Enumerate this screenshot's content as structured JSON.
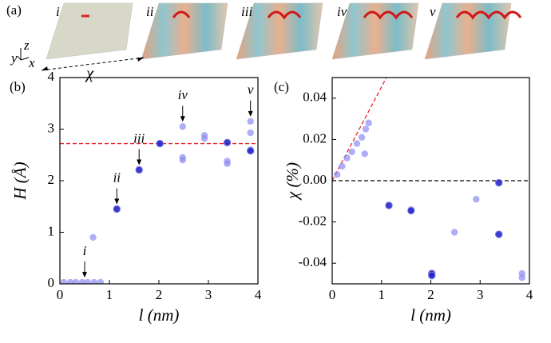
{
  "panel_a": {
    "label": "(a)",
    "snapshots": [
      "i",
      "ii",
      "iii",
      "iv",
      "v"
    ],
    "axes": [
      "y",
      "z",
      "x"
    ],
    "width_label": "χ"
  },
  "chart_data": [
    {
      "type": "scatter",
      "panel_label": "(b)",
      "xlabel": "l (nm)",
      "ylabel": "H (Å)",
      "xlim": [
        0,
        4
      ],
      "ylim": [
        0,
        4
      ],
      "xticks": [
        0,
        1,
        2,
        3,
        4
      ],
      "yticks": [
        0,
        1,
        2,
        3,
        4
      ],
      "series": [
        {
          "color": "#8c8cf2",
          "x": [
            0.08,
            0.21,
            0.32,
            0.45,
            0.56,
            0.69,
            0.82,
            0.67,
            2.02,
            2.48,
            2.48,
            2.48,
            2.92,
            2.92,
            3.38,
            3.38,
            3.85,
            3.85,
            3.85
          ],
          "values": [
            0.03,
            0.03,
            0.03,
            0.03,
            0.03,
            0.03,
            0.03,
            0.9,
            2.72,
            3.05,
            2.45,
            2.4,
            2.88,
            2.82,
            2.38,
            2.33,
            3.15,
            2.93,
            2.6
          ]
        },
        {
          "color": "#2626c8",
          "x": [
            1.15,
            1.6,
            2.02,
            3.38,
            3.85
          ],
          "values": [
            1.45,
            2.21,
            2.72,
            2.74,
            2.58
          ]
        }
      ],
      "reference_lines": [
        {
          "color": "#e8262b",
          "x": [
            0,
            4
          ],
          "y": [
            2.72,
            2.72
          ]
        }
      ],
      "annotations": [
        {
          "text": "i",
          "x": 0.5,
          "y": 0.03
        },
        {
          "text": "ii",
          "x": 1.15,
          "y": 1.45
        },
        {
          "text": "iii",
          "x": 1.6,
          "y": 2.21
        },
        {
          "text": "iv",
          "x": 2.48,
          "y": 3.05
        },
        {
          "text": "v",
          "x": 3.85,
          "y": 3.15
        }
      ]
    },
    {
      "type": "scatter",
      "panel_label": "(c)",
      "xlabel": "l (nm)",
      "ylabel": "χ (%)",
      "xlim": [
        0,
        4
      ],
      "ylim": [
        -0.05,
        0.05
      ],
      "xticks": [
        0,
        1,
        2,
        3,
        4
      ],
      "yticks": [
        -0.04,
        -0.02,
        {
          "value": 0,
          "label": "0.00"
        },
        0.02,
        0.04
      ],
      "series": [
        {
          "color": "#8c8cf2",
          "x": [
            0.1,
            0.2,
            0.3,
            0.4,
            0.5,
            0.6,
            0.68,
            0.74,
            0.66,
            1.6,
            2.48,
            2.92,
            3.85,
            3.85
          ],
          "values": [
            0.003,
            0.007,
            0.011,
            0.014,
            0.018,
            0.021,
            0.025,
            0.028,
            0.013,
            -0.014,
            -0.025,
            -0.009,
            -0.045,
            -0.047
          ]
        },
        {
          "color": "#2626c8",
          "x": [
            1.15,
            1.6,
            2.02,
            2.02,
            3.38,
            3.38
          ],
          "values": [
            -0.012,
            -0.0145,
            -0.045,
            -0.046,
            -0.001,
            -0.026
          ]
        }
      ],
      "reference_lines": [
        {
          "color": "#e8262b",
          "x": [
            0,
            1.1
          ],
          "y": [
            0,
            0.05
          ]
        },
        {
          "color": "#000000",
          "x": [
            0,
            4
          ],
          "y": [
            0,
            0
          ]
        }
      ]
    }
  ]
}
